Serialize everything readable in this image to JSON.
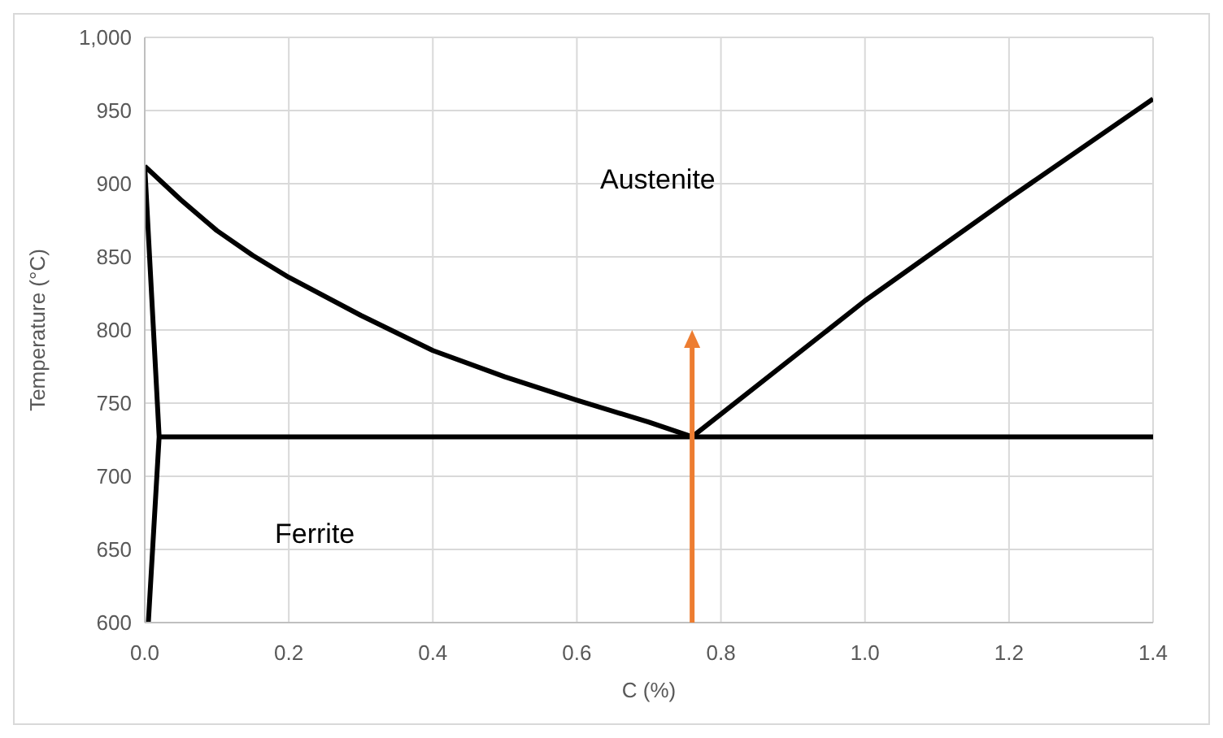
{
  "chart_data": {
    "type": "line",
    "xlabel": "C (%)",
    "ylabel": "Temperature (°C)",
    "xlim": [
      0,
      1.4
    ],
    "xticks": [
      {
        "value": 0,
        "label": "0.0"
      },
      {
        "value": 0.2,
        "label": "0.2"
      },
      {
        "value": 0.4,
        "label": "0.4"
      },
      {
        "value": 0.6,
        "label": "0.6"
      },
      {
        "value": 0.8,
        "label": "0.8"
      },
      {
        "value": 1,
        "label": "1.0"
      },
      {
        "value": 1.2,
        "label": "1.2"
      },
      {
        "value": 1.4,
        "label": "1.4"
      }
    ],
    "ylim": [
      600,
      1000
    ],
    "yticks": [
      600,
      650,
      700,
      750,
      800,
      850,
      900,
      950,
      {
        "value": 1000,
        "label": "1,000"
      }
    ],
    "grid": true,
    "marker": "none",
    "line_style": "solid",
    "series": [
      {
        "color": "#000000",
        "x": [
          0,
          0.05,
          0.1,
          0.15,
          0.2,
          0.3,
          0.4,
          0.5,
          0.6,
          0.7,
          0.76
        ],
        "values": [
          912,
          889,
          868,
          851,
          836,
          810,
          786,
          768,
          752,
          737,
          727
        ]
      },
      {
        "color": "#000000",
        "x": [
          0.76,
          1.0,
          1.2,
          1.4
        ],
        "values": [
          727,
          820,
          890,
          958
        ]
      },
      {
        "color": "#000000",
        "x": [
          0.02,
          1.4
        ],
        "values": [
          727,
          727
        ]
      },
      {
        "color": "#000000",
        "x": [
          0,
          0.02,
          0.005
        ],
        "values": [
          912,
          727,
          600
        ]
      }
    ],
    "annotations": [
      "Austenite",
      "Ferrite"
    ]
  }
}
